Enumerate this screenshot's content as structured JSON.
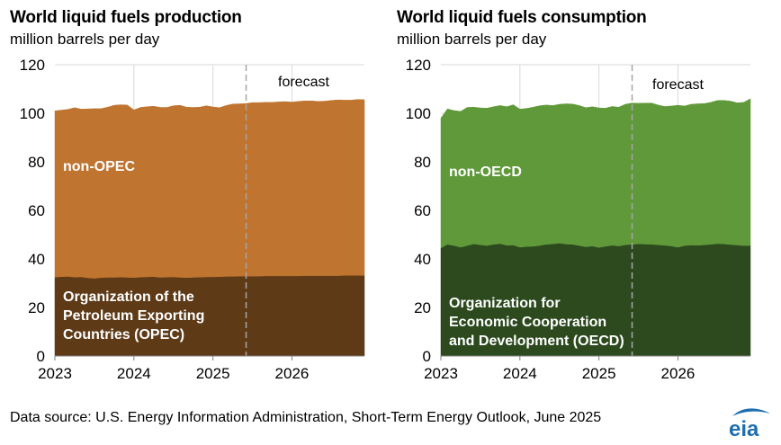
{
  "source_note": "Data source: U.S. Energy Information Administration, Short-Term Energy Outlook, June 2025",
  "logo_text": "eia",
  "colors": {
    "production_top": "#BF7430",
    "production_bottom": "#5E3A17",
    "consumption_top": "#60993A",
    "consumption_bottom": "#2C4A1E",
    "gridline": "#D9D9D9",
    "forecast_line": "#A6A6A6",
    "logo_blue": "#1F6FAE"
  },
  "chart_data": [
    {
      "type": "area",
      "stacked": true,
      "title": "World liquid fuels production",
      "subtitle": "million barrels per day",
      "ylim": [
        0,
        120
      ],
      "yticks": [
        0,
        20,
        40,
        60,
        80,
        100,
        120
      ],
      "xlim": [
        2023,
        2026.917
      ],
      "xticks": [
        2023,
        2024,
        2025,
        2026
      ],
      "forecast_start": 2025.42,
      "forecast_label": "forecast",
      "grid": true,
      "x": [
        2023.0,
        2023.083,
        2023.167,
        2023.25,
        2023.333,
        2023.417,
        2023.5,
        2023.583,
        2023.667,
        2023.75,
        2023.833,
        2023.917,
        2024.0,
        2024.083,
        2024.167,
        2024.25,
        2024.333,
        2024.417,
        2024.5,
        2024.583,
        2024.667,
        2024.75,
        2024.833,
        2024.917,
        2025.0,
        2025.083,
        2025.167,
        2025.25,
        2025.333,
        2025.417,
        2025.5,
        2025.583,
        2025.667,
        2025.75,
        2025.833,
        2025.917,
        2026.0,
        2026.083,
        2026.167,
        2026.25,
        2026.333,
        2026.417,
        2026.5,
        2026.583,
        2026.667,
        2026.75,
        2026.833,
        2026.917
      ],
      "series": [
        {
          "name": "Organization of the Petroleum Exporting Countries (OPEC)",
          "label_lines": [
            "Organization of the",
            "Petroleum Exporting",
            "Countries (OPEC)"
          ],
          "values": [
            32.5,
            32.7,
            32.8,
            32.5,
            32.6,
            32.2,
            32.0,
            32.3,
            32.4,
            32.4,
            32.5,
            32.4,
            32.3,
            32.5,
            32.6,
            32.7,
            32.4,
            32.5,
            32.6,
            32.4,
            32.3,
            32.4,
            32.5,
            32.6,
            32.6,
            32.7,
            32.8,
            32.8,
            32.9,
            32.9,
            32.9,
            32.9,
            33.0,
            33.0,
            33.0,
            33.0,
            33.0,
            33.0,
            33.1,
            33.1,
            33.1,
            33.1,
            33.1,
            33.1,
            33.2,
            33.2,
            33.2,
            33.2
          ]
        },
        {
          "name": "non-OPEC",
          "label_lines": [
            "non-OPEC"
          ],
          "values": [
            68.5,
            68.6,
            68.8,
            69.8,
            69.1,
            69.6,
            69.9,
            69.6,
            70.1,
            70.9,
            71.0,
            71.0,
            69.1,
            69.9,
            70.1,
            70.2,
            70.0,
            69.9,
            70.5,
            70.9,
            70.2,
            70.0,
            70.0,
            70.5,
            70.0,
            69.6,
            70.4,
            71.0,
            71.0,
            71.1,
            71.5,
            71.5,
            71.5,
            71.5,
            71.7,
            71.8,
            71.6,
            71.9,
            72.0,
            72.0,
            71.8,
            71.9,
            72.2,
            72.4,
            72.2,
            72.2,
            72.5,
            72.4
          ]
        }
      ]
    },
    {
      "type": "area",
      "stacked": true,
      "title": "World liquid fuels consumption",
      "subtitle": "million barrels per day",
      "ylim": [
        0,
        120
      ],
      "yticks": [
        0,
        20,
        40,
        60,
        80,
        100,
        120
      ],
      "xlim": [
        2023,
        2026.917
      ],
      "xticks": [
        2023,
        2024,
        2025,
        2026
      ],
      "forecast_start": 2025.42,
      "forecast_label": "forecast",
      "grid": true,
      "x": [
        2023.0,
        2023.083,
        2023.167,
        2023.25,
        2023.333,
        2023.417,
        2023.5,
        2023.583,
        2023.667,
        2023.75,
        2023.833,
        2023.917,
        2024.0,
        2024.083,
        2024.167,
        2024.25,
        2024.333,
        2024.417,
        2024.5,
        2024.583,
        2024.667,
        2024.75,
        2024.833,
        2024.917,
        2025.0,
        2025.083,
        2025.167,
        2025.25,
        2025.333,
        2025.417,
        2025.5,
        2025.583,
        2025.667,
        2025.75,
        2025.833,
        2025.917,
        2026.0,
        2026.083,
        2026.167,
        2026.25,
        2026.333,
        2026.417,
        2026.5,
        2026.583,
        2026.667,
        2026.75,
        2026.833,
        2026.917
      ],
      "series": [
        {
          "name": "Organization for Economic Cooperation and Development (OECD)",
          "label_lines": [
            "Organization for",
            "Economic Cooperation",
            "and Development (OECD)"
          ],
          "values": [
            44.5,
            46.0,
            45.5,
            44.8,
            45.5,
            46.2,
            45.8,
            45.5,
            46.0,
            46.3,
            45.6,
            45.7,
            44.8,
            45.1,
            45.2,
            45.5,
            46.0,
            46.2,
            46.5,
            46.1,
            46.0,
            45.5,
            45.0,
            45.3,
            44.7,
            45.2,
            45.6,
            45.3,
            45.8,
            46.0,
            46.2,
            46.1,
            46.0,
            45.8,
            45.6,
            45.3,
            44.8,
            45.5,
            45.7,
            45.6,
            45.8,
            46.0,
            46.3,
            46.2,
            45.9,
            45.7,
            45.5,
            45.5
          ]
        },
        {
          "name": "non-OECD",
          "label_lines": [
            "non-OECD"
          ],
          "values": [
            53.5,
            55.8,
            55.6,
            56.0,
            56.9,
            56.3,
            56.4,
            56.6,
            56.7,
            56.9,
            57.1,
            57.8,
            56.9,
            56.9,
            57.3,
            57.6,
            57.4,
            57.0,
            57.2,
            57.8,
            57.8,
            57.7,
            57.3,
            57.4,
            57.5,
            56.9,
            57.2,
            57.2,
            57.9,
            58.2,
            57.9,
            58.1,
            58.2,
            57.6,
            57.2,
            57.7,
            58.5,
            57.5,
            58.0,
            58.3,
            58.2,
            58.5,
            59.0,
            59.1,
            59.1,
            58.6,
            59.0,
            60.5
          ]
        }
      ]
    }
  ]
}
